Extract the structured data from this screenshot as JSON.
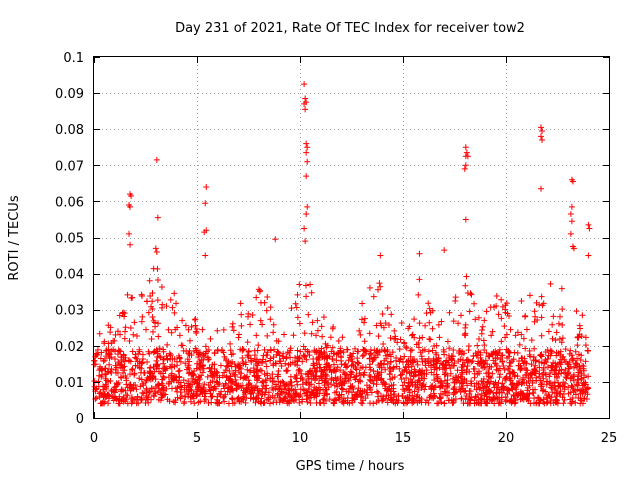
{
  "chart_data": {
    "type": "scatter",
    "title": "Day 231 of 2021, Rate Of TEC Index for receiver tow2",
    "xlabel": "GPS time / hours",
    "ylabel": "ROTI / TECUs",
    "xlim": [
      0,
      25
    ],
    "ylim": [
      0,
      0.1
    ],
    "x_ticks": [
      0,
      5,
      10,
      15,
      20,
      25
    ],
    "x_tick_labels": [
      "0",
      "5",
      "10",
      "15",
      "20",
      "25"
    ],
    "y_ticks": [
      0,
      0.01,
      0.02,
      0.03,
      0.04,
      0.05,
      0.06,
      0.07,
      0.08,
      0.09,
      0.1
    ],
    "y_tick_labels": [
      "0",
      "0.01",
      "0.02",
      "0.03",
      "0.04",
      "0.05",
      "0.06",
      "0.07",
      "0.08",
      "0.09",
      "0.1"
    ],
    "grid": true,
    "marker": "+",
    "color": "#ff0000",
    "x_range_of_data": [
      0,
      24
    ],
    "series": [
      {
        "name": "ROTI",
        "note": "dense background of points from 0.003 to ~0.025 across 0-24 h; listed points are notable outliers/peaks",
        "points": [
          [
            1.75,
            0.062
          ],
          [
            1.8,
            0.0615
          ],
          [
            1.7,
            0.059
          ],
          [
            1.75,
            0.0585
          ],
          [
            1.7,
            0.051
          ],
          [
            1.75,
            0.048
          ],
          [
            3.05,
            0.0715
          ],
          [
            3.1,
            0.0555
          ],
          [
            3.0,
            0.047
          ],
          [
            3.05,
            0.046
          ],
          [
            5.45,
            0.064
          ],
          [
            5.4,
            0.0595
          ],
          [
            5.45,
            0.052
          ],
          [
            5.35,
            0.0515
          ],
          [
            5.4,
            0.045
          ],
          [
            8.8,
            0.0495
          ],
          [
            10.2,
            0.0925
          ],
          [
            10.25,
            0.0885
          ],
          [
            10.3,
            0.0875
          ],
          [
            10.2,
            0.087
          ],
          [
            10.25,
            0.0855
          ],
          [
            10.3,
            0.076
          ],
          [
            10.35,
            0.075
          ],
          [
            10.3,
            0.0735
          ],
          [
            10.35,
            0.071
          ],
          [
            10.3,
            0.067
          ],
          [
            10.35,
            0.0585
          ],
          [
            10.3,
            0.0565
          ],
          [
            10.2,
            0.0525
          ],
          [
            10.25,
            0.049
          ],
          [
            13.9,
            0.045
          ],
          [
            15.8,
            0.0455
          ],
          [
            17.0,
            0.0465
          ],
          [
            18.05,
            0.075
          ],
          [
            18.1,
            0.0735
          ],
          [
            18.05,
            0.0725
          ],
          [
            18.15,
            0.0725
          ],
          [
            18.05,
            0.07
          ],
          [
            18.0,
            0.069
          ],
          [
            18.05,
            0.055
          ],
          [
            21.7,
            0.0805
          ],
          [
            21.75,
            0.0795
          ],
          [
            21.7,
            0.078
          ],
          [
            21.75,
            0.077
          ],
          [
            21.7,
            0.0635
          ],
          [
            23.2,
            0.066
          ],
          [
            23.25,
            0.0655
          ],
          [
            23.2,
            0.0585
          ],
          [
            23.15,
            0.0565
          ],
          [
            23.2,
            0.0545
          ],
          [
            23.15,
            0.051
          ],
          [
            23.25,
            0.0475
          ],
          [
            23.3,
            0.047
          ],
          [
            24.0,
            0.0535
          ],
          [
            24.05,
            0.0525
          ],
          [
            24.0,
            0.045
          ]
        ]
      }
    ]
  }
}
